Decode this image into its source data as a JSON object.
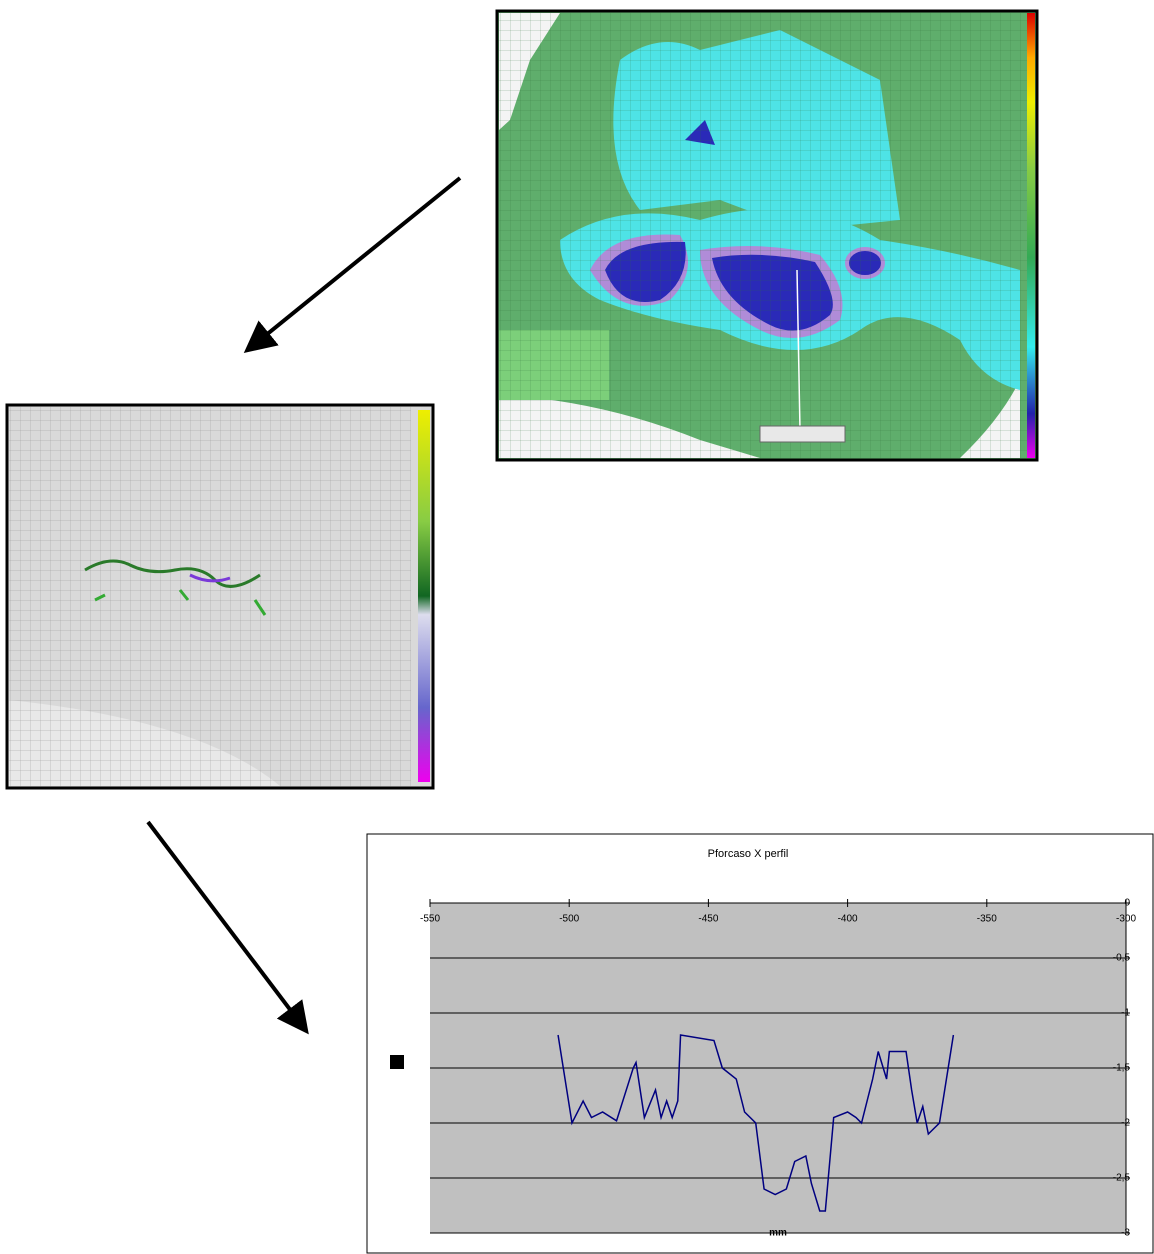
{
  "chart_data": {
    "type": "line",
    "title": "Pforcaso X perfil",
    "x_label": "mm",
    "x": [
      -504,
      -499,
      -495,
      -492,
      -488,
      -483,
      -477,
      -476,
      -473,
      -469,
      -467,
      -465,
      -463,
      -461,
      -460,
      -448,
      -445,
      -440,
      -437,
      -433,
      -430,
      -426,
      -422,
      -419,
      -415,
      -413,
      -410,
      -408,
      -405,
      -400,
      -397,
      -395,
      -391,
      -389,
      -386,
      -385,
      -379,
      -377,
      -375,
      -373,
      -371,
      -367,
      -362
    ],
    "series": [
      {
        "color": "#000080",
        "values": [
          -1.2,
          -2.0,
          -1.8,
          -1.95,
          -1.9,
          -1.98,
          -1.5,
          -1.45,
          -1.95,
          -1.7,
          -1.95,
          -1.8,
          -1.95,
          -1.8,
          -1.2,
          -1.25,
          -1.5,
          -1.6,
          -1.9,
          -2.0,
          -2.6,
          -2.65,
          -2.6,
          -2.35,
          -2.3,
          -2.55,
          -2.8,
          -2.8,
          -1.95,
          -1.9,
          -1.95,
          -2.0,
          -1.6,
          -1.35,
          -1.6,
          -1.35,
          -1.35,
          -1.7,
          -2.0,
          -1.85,
          -2.1,
          -2.0,
          -1.2
        ]
      }
    ],
    "xlim": [
      -550,
      -300
    ],
    "xticks": [
      -550,
      -500,
      -450,
      -400,
      -350,
      -300
    ],
    "ylim": [
      -3,
      0
    ],
    "yticks": [
      0,
      {
        "value": -0.5,
        "label": "-0,5"
      },
      -1,
      {
        "value": -1.5,
        "label": "-1,5"
      },
      -2,
      {
        "value": -2.5,
        "label": "-2,5"
      },
      -3
    ],
    "grid": true,
    "plot_background": "#c0c0c0",
    "x_axis_side": "top",
    "y_axis_side": "right"
  }
}
